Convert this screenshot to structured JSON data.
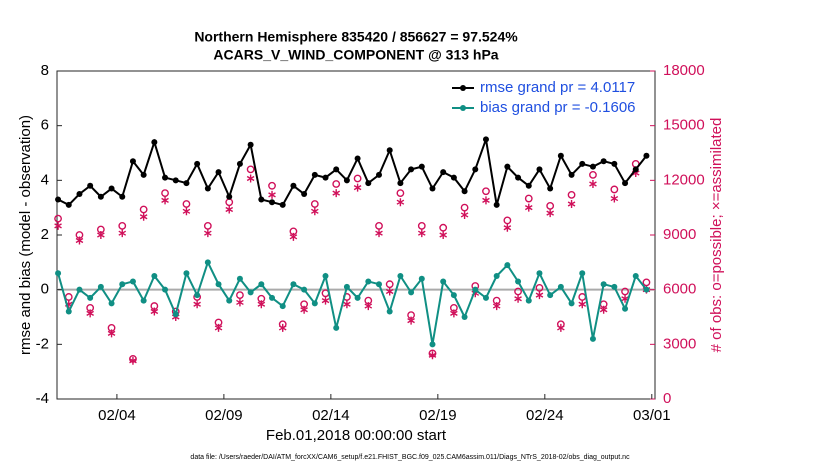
{
  "chart_data": {
    "type": "line",
    "title": "Northern Hemisphere 835420 / 856627 = 97.524%",
    "subtitle": "ACARS_V_WIND_COMPONENT @ 313 hPa",
    "x_label": "Feb.01,2018 00:00:00 start",
    "y_label": "rmse and bias (model - observation)",
    "y2_label": "# of obs: o=possible; ×=assimilated",
    "footnote": "data file: /Users/raeder/DAI/ATM_forcXX/CAM6_setup/f.e21.FHIST_BGC.f09_025.CAM6assim.011/Diags_NTrS_2018-02/obs_diag_output.nc",
    "legend_position": "upper right",
    "xlim": [
      0.2,
      28.15
    ],
    "xticks": [
      {
        "value": 3,
        "label": "02/04"
      },
      {
        "value": 8,
        "label": "02/09"
      },
      {
        "value": 13,
        "label": "02/14"
      },
      {
        "value": 18,
        "label": "02/19"
      },
      {
        "value": 23,
        "label": "02/24"
      },
      {
        "value": 28,
        "label": "03/01"
      }
    ],
    "ylim": [
      -4,
      8
    ],
    "yticks": [
      -4,
      -2,
      0,
      2,
      4,
      6,
      8
    ],
    "y2lim": [
      0,
      18000
    ],
    "y2ticks": [
      0,
      3000,
      6000,
      9000,
      12000,
      15000,
      18000
    ],
    "x": [
      0.25,
      0.75,
      1.25,
      1.75,
      2.25,
      2.75,
      3.25,
      3.75,
      4.25,
      4.75,
      5.25,
      5.75,
      6.25,
      6.75,
      7.25,
      7.75,
      8.25,
      8.75,
      9.25,
      9.75,
      10.25,
      10.75,
      11.25,
      11.75,
      12.25,
      12.75,
      13.25,
      13.75,
      14.25,
      14.75,
      15.25,
      15.75,
      16.25,
      16.75,
      17.25,
      17.75,
      18.25,
      18.75,
      19.25,
      19.75,
      20.25,
      20.75,
      21.25,
      21.75,
      22.25,
      22.75,
      23.25,
      23.75,
      24.25,
      24.75,
      25.25,
      25.75,
      26.25,
      26.75,
      27.25,
      27.75
    ],
    "series": [
      {
        "name": "rmse grand pr = 4.0117",
        "color": "#000000",
        "marker": "dot",
        "line": true,
        "values": [
          3.3,
          3.1,
          3.5,
          3.8,
          3.4,
          3.7,
          3.4,
          4.7,
          4.2,
          5.4,
          4.1,
          4.0,
          3.9,
          4.6,
          3.7,
          4.3,
          3.4,
          4.6,
          5.3,
          3.3,
          3.2,
          3.1,
          3.8,
          3.5,
          4.2,
          4.1,
          4.4,
          4.0,
          4.8,
          3.9,
          4.2,
          5.1,
          3.9,
          4.4,
          4.5,
          3.7,
          4.3,
          4.1,
          3.6,
          4.4,
          5.5,
          3.1,
          4.5,
          4.1,
          3.8,
          4.4,
          3.7,
          4.9,
          4.2,
          4.6,
          4.5,
          4.7,
          4.6,
          3.9,
          4.4,
          4.9
        ]
      },
      {
        "name": "bias grand pr = -0.1606",
        "color": "#108f84",
        "marker": "dot",
        "line": true,
        "values": [
          0.6,
          -0.8,
          0,
          -0.3,
          0.1,
          -0.5,
          0.2,
          0.3,
          -0.4,
          0.5,
          0,
          -0.9,
          0.6,
          -0.2,
          1.0,
          0.2,
          -0.4,
          0.4,
          -0.1,
          0.2,
          -0.3,
          -0.6,
          0.2,
          0,
          -0.5,
          0.5,
          -1.4,
          0.1,
          -0.3,
          0.3,
          0.2,
          -0.8,
          0.5,
          -0.1,
          0.4,
          -2.0,
          0.3,
          -0.2,
          -1.0,
          0,
          -0.3,
          0.5,
          0.9,
          0.3,
          -0.4,
          0.6,
          -0.2,
          0.1,
          -0.5,
          0.6,
          -1.8,
          0.2,
          0.1,
          -0.7,
          0.5,
          0
        ]
      },
      {
        "color": "#d0105a",
        "marker": "circle",
        "line": false,
        "axis": "y2",
        "values": [
          9900,
          5600,
          9000,
          5000,
          9300,
          3900,
          9500,
          2200,
          10400,
          5100,
          11300,
          4800,
          10700,
          5600,
          9500,
          4200,
          10800,
          5700,
          12600,
          5500,
          11700,
          4100,
          9200,
          5200,
          10700,
          5800,
          11800,
          5600,
          12100,
          5400,
          9500,
          6300,
          11300,
          4600,
          9500,
          2500,
          9400,
          5000,
          10500,
          6200,
          11400,
          5400,
          9800,
          5900,
          11000,
          6100,
          10600,
          4100,
          11200,
          5600,
          12300,
          5200,
          11500,
          5900,
          12900,
          6400
        ]
      },
      {
        "color": "#d0105a",
        "marker": "asterisk",
        "line": false,
        "axis": "y2",
        "values": [
          9500,
          5200,
          8700,
          4700,
          9000,
          3600,
          9100,
          2100,
          10000,
          4800,
          10900,
          4500,
          10300,
          5200,
          9100,
          3900,
          10400,
          5300,
          12100,
          5200,
          11200,
          3900,
          8900,
          4900,
          10300,
          5400,
          11300,
          5200,
          11600,
          5100,
          9100,
          5900,
          10800,
          4300,
          9100,
          2400,
          9000,
          4700,
          10100,
          5800,
          10900,
          5100,
          9400,
          5500,
          10500,
          5700,
          10200,
          3900,
          10700,
          5200,
          11800,
          4900,
          11000,
          5500,
          12400,
          6000
        ]
      }
    ]
  }
}
